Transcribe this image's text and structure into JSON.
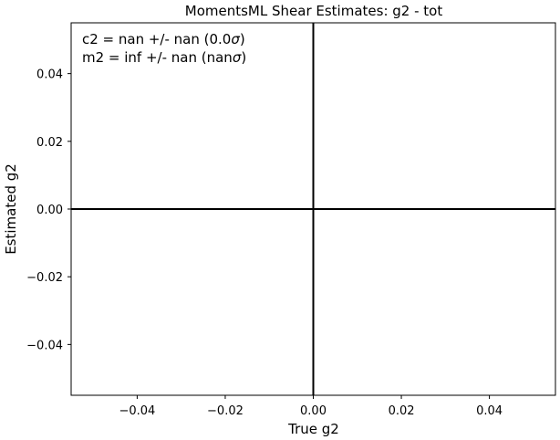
{
  "chart_data": {
    "type": "scatter",
    "title": "MomentsML Shear Estimates: g2  - tot",
    "xlabel": "True g2",
    "ylabel": "Estimated g2",
    "xlim": [
      -0.055,
      0.055
    ],
    "ylim": [
      -0.055,
      0.055
    ],
    "xticks": [
      -0.04,
      -0.02,
      0.0,
      0.02,
      0.04
    ],
    "yticks": [
      -0.04,
      -0.02,
      0.0,
      0.02,
      0.04
    ],
    "xtick_labels": [
      "−0.04",
      "−0.02",
      "0.00",
      "0.02",
      "0.04"
    ],
    "ytick_labels": [
      "−0.04",
      "−0.02",
      "0.00",
      "0.02",
      "0.04"
    ],
    "grid": false,
    "reference_lines": {
      "x": 0.0,
      "y": 0.0,
      "color": "#000000"
    },
    "points": [],
    "annotations": [
      {
        "prefix": "c2 = nan +/- nan (0.0",
        "symbol": "σ",
        "suffix": ")"
      },
      {
        "prefix": "m2 = inf +/- nan (nan",
        "symbol": "σ",
        "suffix": ")"
      }
    ]
  }
}
